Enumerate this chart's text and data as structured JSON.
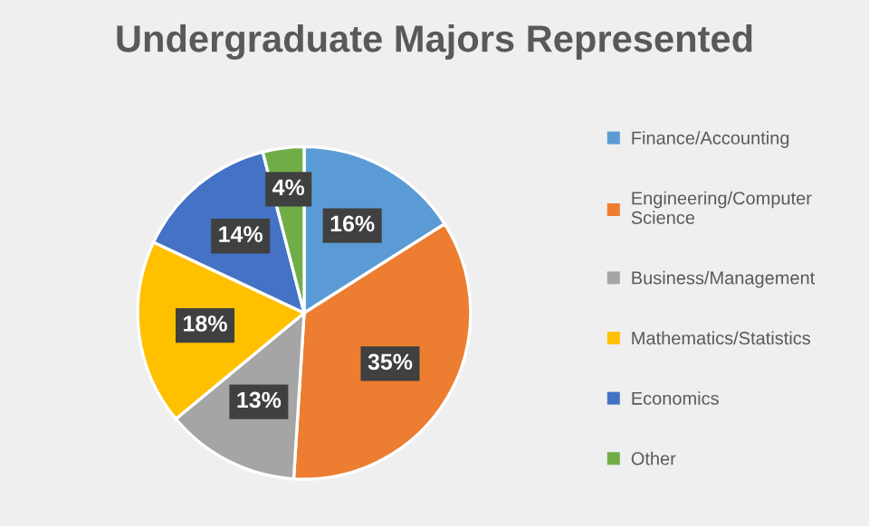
{
  "chart_data": {
    "type": "pie",
    "title": "Undergraduate Majors Represented",
    "categories": [
      "Finance/Accounting",
      "Engineering/Computer Science",
      "Business/Management",
      "Mathematics/Statistics",
      "Economics",
      "Other"
    ],
    "values": [
      16,
      35,
      13,
      18,
      14,
      4
    ],
    "colors": [
      "#5b9bd5",
      "#ed7d31",
      "#a5a5a5",
      "#ffc000",
      "#4472c4",
      "#70ad47"
    ],
    "value_labels": [
      "16%",
      "35%",
      "13%",
      "18%",
      "14%",
      "4%"
    ],
    "legend": "right"
  }
}
